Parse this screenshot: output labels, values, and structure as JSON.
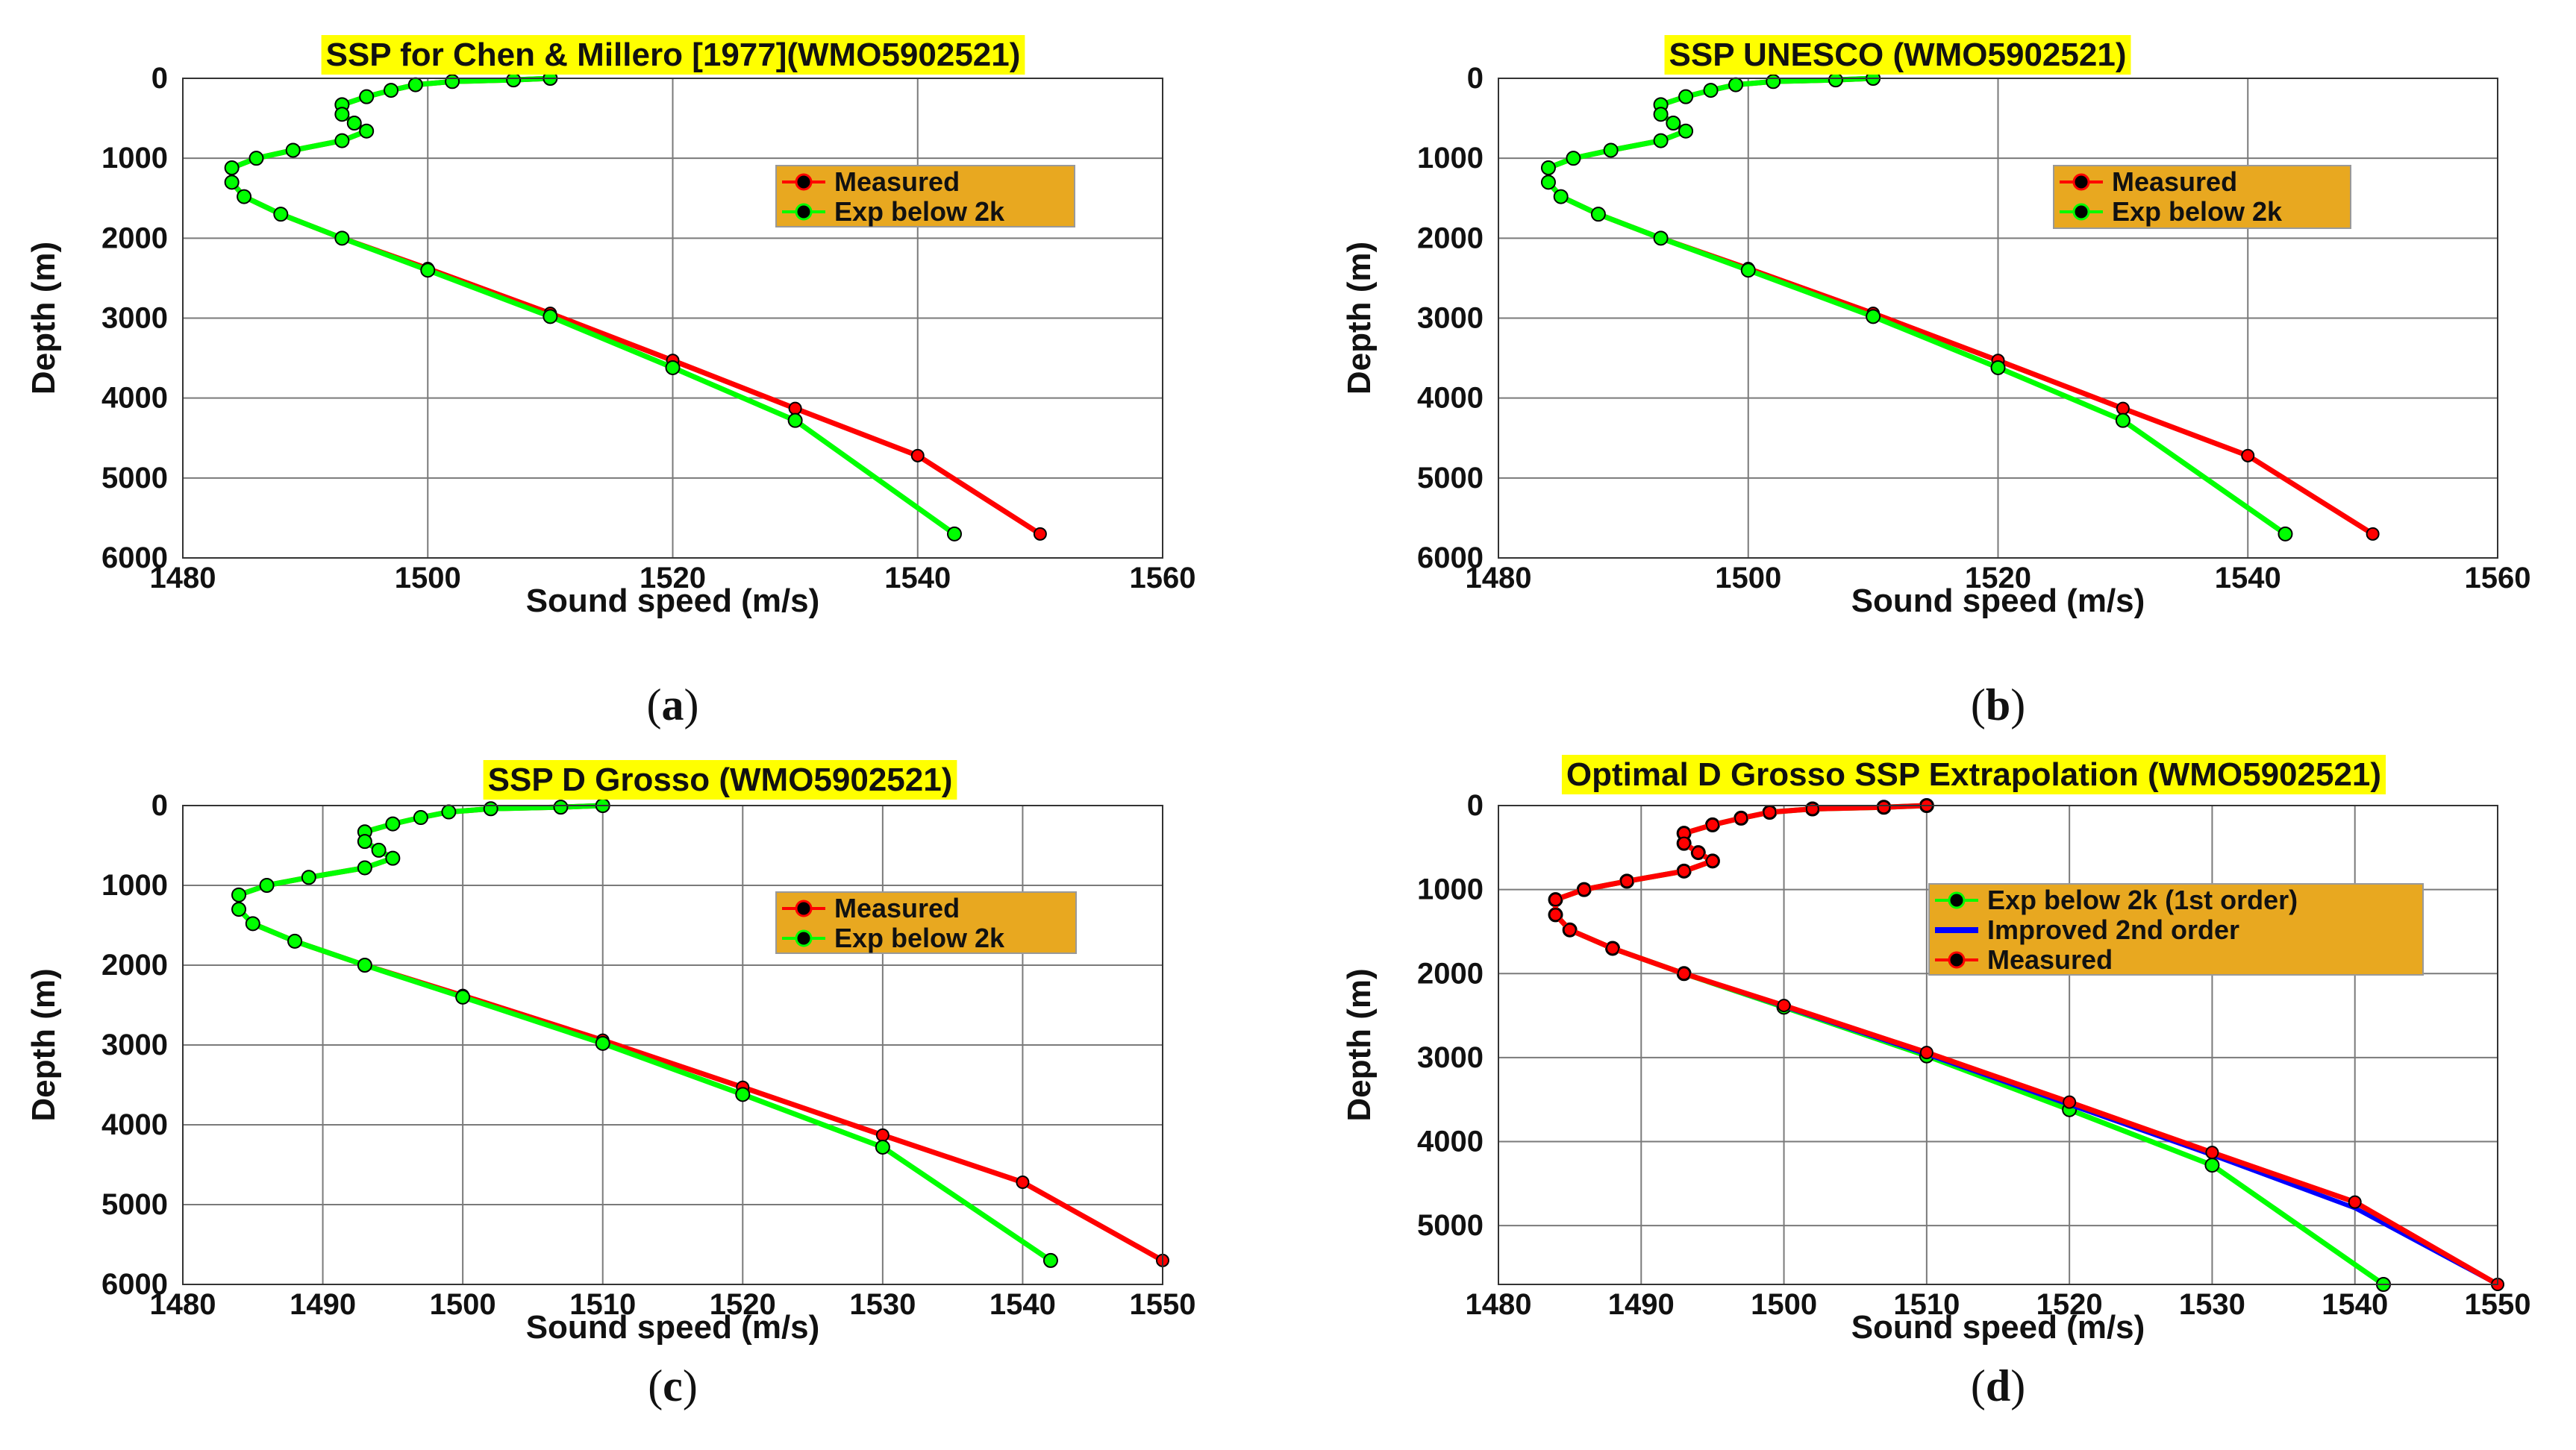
{
  "colors": {
    "title_bg": "#ffff00",
    "legend_bg": "#e8a820",
    "measured": "#ff0000",
    "measured_marker": "#000000",
    "exp": "#00ff00",
    "exp_marker": "#000000",
    "improved": "#0000ff",
    "grid": "#7a7a7a"
  },
  "chart_data": [
    {
      "type": "line",
      "panel": "a",
      "caption_letter": "a",
      "title": "SSP for Chen & Millero [1977](WMO5902521)",
      "xlabel": "Sound speed (m/s)",
      "ylabel": "Depth (m)",
      "xlim": [
        1480,
        1560
      ],
      "ylim": [
        0,
        6000
      ],
      "y_reversed": true,
      "xticks": [
        1480,
        1500,
        1520,
        1540,
        1560
      ],
      "yticks": [
        0,
        1000,
        2000,
        3000,
        4000,
        5000,
        6000
      ],
      "xtick_labels": [
        "1480",
        "1500",
        "1520",
        "1540",
        "1560"
      ],
      "ytick_labels": [
        "0",
        "1000",
        "2000",
        "3000",
        "4000",
        "5000",
        "6000"
      ],
      "legend": [
        "Measured",
        "Exp below 2k"
      ],
      "legend_position": "upper-right",
      "series": [
        {
          "name": "Measured",
          "x": [
            1510,
            1507,
            1502,
            1499,
            1497,
            1495,
            1493,
            1493,
            1494,
            1495,
            1493,
            1489,
            1486,
            1484,
            1484,
            1485,
            1488,
            1493,
            1500,
            1510,
            1520,
            1530,
            1540,
            1550
          ],
          "y": [
            0,
            20,
            40,
            80,
            150,
            230,
            330,
            450,
            560,
            660,
            780,
            900,
            1000,
            1120,
            1300,
            1480,
            1700,
            2000,
            2380,
            2940,
            3530,
            4130,
            4720,
            5700
          ]
        },
        {
          "name": "Exp below 2k",
          "x": [
            1510,
            1507,
            1502,
            1499,
            1497,
            1495,
            1493,
            1493,
            1494,
            1495,
            1493,
            1489,
            1486,
            1484,
            1484,
            1485,
            1488,
            1493,
            1500,
            1510,
            1520,
            1530,
            1543
          ],
          "y": [
            0,
            20,
            40,
            80,
            150,
            230,
            330,
            450,
            560,
            660,
            780,
            900,
            1000,
            1120,
            1300,
            1480,
            1700,
            2000,
            2400,
            2980,
            3620,
            4280,
            5700
          ]
        }
      ]
    },
    {
      "type": "line",
      "panel": "b",
      "caption_letter": "b",
      "title": "SSP UNESCO (WMO5902521)",
      "xlabel": "Sound speed (m/s)",
      "ylabel": "Depth (m)",
      "xlim": [
        1480,
        1560
      ],
      "ylim": [
        0,
        6000
      ],
      "y_reversed": true,
      "xticks": [
        1480,
        1500,
        1520,
        1540,
        1560
      ],
      "yticks": [
        0,
        1000,
        2000,
        3000,
        4000,
        5000,
        6000
      ],
      "xtick_labels": [
        "1480",
        "1500",
        "1520",
        "1540",
        "1560"
      ],
      "ytick_labels": [
        "0",
        "1000",
        "2000",
        "3000",
        "4000",
        "5000",
        "6000"
      ],
      "legend": [
        "Measured",
        "Exp below 2k"
      ],
      "legend_position": "upper-right",
      "series": [
        {
          "name": "Measured",
          "x": [
            1510,
            1507,
            1502,
            1499,
            1497,
            1495,
            1493,
            1493,
            1494,
            1495,
            1493,
            1489,
            1486,
            1484,
            1484,
            1485,
            1488,
            1493,
            1500,
            1510,
            1520,
            1530,
            1540,
            1550
          ],
          "y": [
            0,
            20,
            40,
            80,
            150,
            230,
            330,
            450,
            560,
            660,
            780,
            900,
            1000,
            1120,
            1300,
            1480,
            1700,
            2000,
            2380,
            2940,
            3530,
            4130,
            4720,
            5700
          ]
        },
        {
          "name": "Exp below 2k",
          "x": [
            1510,
            1507,
            1502,
            1499,
            1497,
            1495,
            1493,
            1493,
            1494,
            1495,
            1493,
            1489,
            1486,
            1484,
            1484,
            1485,
            1488,
            1493,
            1500,
            1510,
            1520,
            1530,
            1543
          ],
          "y": [
            0,
            20,
            40,
            80,
            150,
            230,
            330,
            450,
            560,
            660,
            780,
            900,
            1000,
            1120,
            1300,
            1480,
            1700,
            2000,
            2400,
            2980,
            3620,
            4280,
            5700
          ]
        }
      ]
    },
    {
      "type": "line",
      "panel": "c",
      "caption_letter": "c",
      "title": "SSP D Grosso (WMO5902521)",
      "xlabel": "Sound speed (m/s)",
      "ylabel": "Depth (m)",
      "xlim": [
        1480,
        1550
      ],
      "ylim": [
        0,
        6000
      ],
      "y_reversed": true,
      "xticks": [
        1480,
        1490,
        1500,
        1510,
        1520,
        1530,
        1540,
        1550
      ],
      "yticks": [
        0,
        1000,
        2000,
        3000,
        4000,
        5000,
        6000
      ],
      "xtick_labels": [
        "1480",
        "1490",
        "1500",
        "1510",
        "1520",
        "1530",
        "1540",
        "1550"
      ],
      "ytick_labels": [
        "0",
        "1000",
        "2000",
        "3000",
        "4000",
        "5000",
        "6000"
      ],
      "legend": [
        "Measured",
        "Exp below 2k"
      ],
      "legend_position": "upper-right",
      "series": [
        {
          "name": "Measured",
          "x": [
            1510,
            1507,
            1502,
            1499,
            1497,
            1495,
            1493,
            1493,
            1494,
            1495,
            1493,
            1489,
            1486,
            1484,
            1484,
            1485,
            1488,
            1493,
            1500,
            1510,
            1520,
            1530,
            1540,
            1550
          ],
          "y": [
            0,
            20,
            40,
            80,
            150,
            230,
            330,
            450,
            560,
            660,
            780,
            900,
            1000,
            1120,
            1300,
            1480,
            1700,
            2000,
            2380,
            2940,
            3530,
            4130,
            4720,
            5700
          ]
        },
        {
          "name": "Exp below 2k",
          "x": [
            1510,
            1507,
            1502,
            1499,
            1497,
            1495,
            1493,
            1493,
            1494,
            1495,
            1493,
            1489,
            1486,
            1484,
            1484,
            1485,
            1488,
            1493,
            1500,
            1510,
            1520,
            1530,
            1542
          ],
          "y": [
            0,
            20,
            40,
            80,
            150,
            230,
            330,
            450,
            560,
            660,
            780,
            900,
            1000,
            1120,
            1300,
            1480,
            1700,
            2000,
            2400,
            2980,
            3620,
            4280,
            5700
          ]
        }
      ]
    },
    {
      "type": "line",
      "panel": "d",
      "caption_letter": "d",
      "title": "Optimal D Grosso SSP Extrapolation (WMO5902521)",
      "xlabel": "Sound speed (m/s)",
      "ylabel": "Depth (m)",
      "xlim": [
        1480,
        1550
      ],
      "ylim": [
        0,
        5700
      ],
      "y_reversed": true,
      "xticks": [
        1480,
        1490,
        1500,
        1510,
        1520,
        1530,
        1540,
        1550
      ],
      "yticks": [
        0,
        1000,
        2000,
        3000,
        4000,
        5000
      ],
      "xtick_labels": [
        "1480",
        "1490",
        "1500",
        "1510",
        "1520",
        "1530",
        "1540",
        "1550"
      ],
      "ytick_labels": [
        "0",
        "1000",
        "2000",
        "3000",
        "4000",
        "5000"
      ],
      "legend": [
        "Exp below 2k (1st order)",
        "Improved 2nd order",
        "Measured"
      ],
      "legend_position": "upper-right",
      "series": [
        {
          "name": "Exp below 2k (1st order)",
          "x": [
            1510,
            1507,
            1502,
            1499,
            1497,
            1495,
            1493,
            1493,
            1494,
            1495,
            1493,
            1489,
            1486,
            1484,
            1484,
            1485,
            1488,
            1493,
            1500,
            1510,
            1520,
            1530,
            1542
          ],
          "y": [
            0,
            20,
            40,
            80,
            150,
            230,
            330,
            450,
            560,
            660,
            780,
            900,
            1000,
            1120,
            1300,
            1480,
            1700,
            2000,
            2400,
            2980,
            3620,
            4280,
            5700
          ]
        },
        {
          "name": "Improved 2nd order",
          "x": [
            1510,
            1507,
            1502,
            1499,
            1497,
            1495,
            1493,
            1493,
            1494,
            1495,
            1493,
            1489,
            1486,
            1484,
            1484,
            1485,
            1488,
            1493,
            1500,
            1510,
            1520,
            1530,
            1540,
            1550
          ],
          "y": [
            0,
            20,
            40,
            80,
            150,
            230,
            330,
            450,
            560,
            660,
            780,
            900,
            1000,
            1120,
            1300,
            1480,
            1700,
            2000,
            2390,
            2960,
            3560,
            4160,
            4790,
            5700
          ]
        },
        {
          "name": "Measured",
          "x": [
            1510,
            1507,
            1502,
            1499,
            1497,
            1495,
            1493,
            1493,
            1494,
            1495,
            1493,
            1489,
            1486,
            1484,
            1484,
            1485,
            1488,
            1493,
            1500,
            1510,
            1520,
            1530,
            1540,
            1550
          ],
          "y": [
            0,
            20,
            40,
            80,
            150,
            230,
            330,
            450,
            560,
            660,
            780,
            900,
            1000,
            1120,
            1300,
            1480,
            1700,
            2000,
            2380,
            2940,
            3530,
            4130,
            4720,
            5700
          ]
        }
      ]
    }
  ]
}
